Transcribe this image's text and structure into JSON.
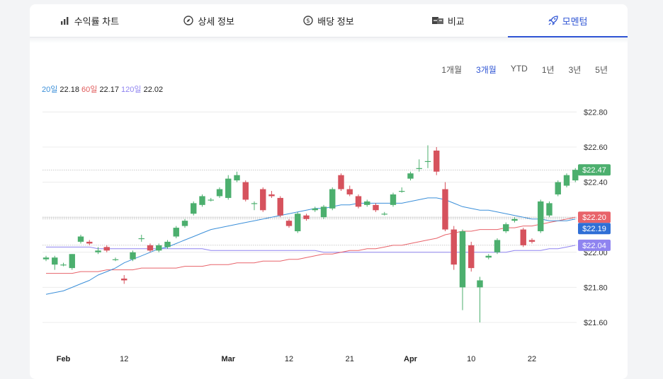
{
  "tabs": [
    {
      "label": "수익률 차트",
      "icon": "bar-chart-icon",
      "active": false
    },
    {
      "label": "상세 정보",
      "icon": "compass-icon",
      "active": false
    },
    {
      "label": "배당 정보",
      "icon": "dollar-icon",
      "active": false
    },
    {
      "label": "비교",
      "icon": "compare-icon",
      "active": false
    },
    {
      "label": "모멘텀",
      "icon": "rocket-icon",
      "active": true
    }
  ],
  "ranges": [
    "1개월",
    "3개월",
    "YTD",
    "1년",
    "3년",
    "5년"
  ],
  "active_range": "3개월",
  "ma_legend": {
    "ma20_label": "20일",
    "ma20_value": "22.18",
    "ma60_label": "60일",
    "ma60_value": "22.17",
    "ma120_label": "120일",
    "ma120_value": "22.02"
  },
  "colors": {
    "up": "#4caf6e",
    "down": "#d6525d",
    "ma20": "#3b8fd9",
    "ma60": "#e8636a",
    "ma120": "#8f84f0",
    "accent": "#2f55d4"
  },
  "chart_data": {
    "type": "candlestick",
    "ylim": [
      21.55,
      22.88
    ],
    "y_ticks": [
      "$22.80",
      "$22.60",
      "$22.40",
      "$22.20",
      "$22.00",
      "$21.80",
      "$21.60"
    ],
    "y_tick_values": [
      22.8,
      22.6,
      22.4,
      22.2,
      22.0,
      21.8,
      21.6
    ],
    "x_tick_labels": [
      {
        "i": 2,
        "label": "Feb",
        "bold": true
      },
      {
        "i": 9,
        "label": "12",
        "bold": false
      },
      {
        "i": 21,
        "label": "Mar",
        "bold": true
      },
      {
        "i": 28,
        "label": "12",
        "bold": false
      },
      {
        "i": 35,
        "label": "21",
        "bold": false
      },
      {
        "i": 42,
        "label": "Apr",
        "bold": true
      },
      {
        "i": 49,
        "label": "10",
        "bold": false
      },
      {
        "i": 56,
        "label": "22",
        "bold": false
      }
    ],
    "candles": [
      [
        21.96,
        21.97,
        21.95,
        21.98
      ],
      [
        21.93,
        21.97,
        21.9,
        21.98
      ],
      [
        21.93,
        21.93,
        21.92,
        21.94
      ],
      [
        21.91,
        21.99,
        21.9,
        21.99
      ],
      [
        22.06,
        22.09,
        22.05,
        22.1
      ],
      [
        22.06,
        22.05,
        22.04,
        22.07
      ],
      [
        22.0,
        22.01,
        21.99,
        22.03
      ],
      [
        22.03,
        22.01,
        22.0,
        22.04
      ],
      [
        21.96,
        21.96,
        21.95,
        21.97
      ],
      [
        21.85,
        21.84,
        21.82,
        21.87
      ],
      [
        21.96,
        22.0,
        21.95,
        22.01
      ],
      [
        22.08,
        22.08,
        22.06,
        22.1
      ],
      [
        22.04,
        22.01,
        22.0,
        22.05
      ],
      [
        22.01,
        22.04,
        22.0,
        22.05
      ],
      [
        22.03,
        22.06,
        22.02,
        22.07
      ],
      [
        22.09,
        22.14,
        22.08,
        22.15
      ],
      [
        22.15,
        22.18,
        22.14,
        22.19
      ],
      [
        22.22,
        22.28,
        22.21,
        22.29
      ],
      [
        22.27,
        22.32,
        22.26,
        22.33
      ],
      [
        22.3,
        22.3,
        22.29,
        22.31
      ],
      [
        22.32,
        22.36,
        22.31,
        22.37
      ],
      [
        22.31,
        22.42,
        22.3,
        22.44
      ],
      [
        22.41,
        22.44,
        22.4,
        22.46
      ],
      [
        22.4,
        22.3,
        22.29,
        22.41
      ],
      [
        22.28,
        22.28,
        22.24,
        22.29
      ],
      [
        22.36,
        22.24,
        22.23,
        22.37
      ],
      [
        22.33,
        22.32,
        22.31,
        22.35
      ],
      [
        22.31,
        22.21,
        22.2,
        22.32
      ],
      [
        22.18,
        22.15,
        22.14,
        22.19
      ],
      [
        22.12,
        22.22,
        22.11,
        22.23
      ],
      [
        22.21,
        22.19,
        22.18,
        22.22
      ],
      [
        22.24,
        22.25,
        22.23,
        22.26
      ],
      [
        22.2,
        22.26,
        22.19,
        22.27
      ],
      [
        22.25,
        22.36,
        22.24,
        22.37
      ],
      [
        22.44,
        22.36,
        22.35,
        22.45
      ],
      [
        22.36,
        22.33,
        22.32,
        22.38
      ],
      [
        22.32,
        22.26,
        22.25,
        22.33
      ],
      [
        22.27,
        22.29,
        22.26,
        22.3
      ],
      [
        22.27,
        22.24,
        22.23,
        22.28
      ],
      [
        22.22,
        22.22,
        22.21,
        22.23
      ],
      [
        22.27,
        22.33,
        22.26,
        22.34
      ],
      [
        22.35,
        22.35,
        22.34,
        22.37
      ],
      [
        22.42,
        22.45,
        22.41,
        22.46
      ],
      [
        22.48,
        22.48,
        22.46,
        22.53
      ],
      [
        22.52,
        22.52,
        22.48,
        22.61
      ],
      [
        22.58,
        22.46,
        22.44,
        22.6
      ],
      [
        22.36,
        22.13,
        22.12,
        22.4
      ],
      [
        22.13,
        21.93,
        21.9,
        22.15
      ],
      [
        21.8,
        22.12,
        21.67,
        22.13
      ],
      [
        22.04,
        21.91,
        21.89,
        22.06
      ],
      [
        21.8,
        21.84,
        21.6,
        21.86
      ],
      [
        21.97,
        21.98,
        21.96,
        21.99
      ],
      [
        22.0,
        22.07,
        21.99,
        22.08
      ],
      [
        22.12,
        22.16,
        22.11,
        22.17
      ],
      [
        22.18,
        22.19,
        22.17,
        22.2
      ],
      [
        22.13,
        22.04,
        22.03,
        22.14
      ],
      [
        22.07,
        22.06,
        22.05,
        22.08
      ],
      [
        22.12,
        22.29,
        22.11,
        22.3
      ],
      [
        22.21,
        22.28,
        22.2,
        22.29
      ],
      [
        22.33,
        22.4,
        22.32,
        22.41
      ],
      [
        22.38,
        22.44,
        22.37,
        22.45
      ],
      [
        22.41,
        22.47,
        22.4,
        22.48
      ]
    ],
    "ma20": [
      21.76,
      21.77,
      21.78,
      21.8,
      21.82,
      21.84,
      21.87,
      21.89,
      21.91,
      21.94,
      21.96,
      21.98,
      22.0,
      22.02,
      22.03,
      22.05,
      22.07,
      22.09,
      22.11,
      22.13,
      22.14,
      22.15,
      22.16,
      22.17,
      22.18,
      22.19,
      22.2,
      22.21,
      22.22,
      22.23,
      22.24,
      22.25,
      22.25,
      22.26,
      22.27,
      22.27,
      22.28,
      22.28,
      22.28,
      22.28,
      22.28,
      22.28,
      22.29,
      22.3,
      22.31,
      22.31,
      22.3,
      22.28,
      22.26,
      22.25,
      22.24,
      22.24,
      22.23,
      22.22,
      22.21,
      22.2,
      22.19,
      22.19,
      22.18,
      22.18,
      22.18,
      22.19
    ],
    "ma60": [
      21.88,
      21.88,
      21.88,
      21.88,
      21.89,
      21.89,
      21.89,
      21.9,
      21.9,
      21.9,
      21.9,
      21.91,
      21.91,
      21.91,
      21.91,
      21.91,
      21.92,
      21.92,
      21.92,
      21.93,
      21.93,
      21.93,
      21.94,
      21.94,
      21.94,
      21.95,
      21.95,
      21.95,
      21.96,
      21.96,
      21.97,
      21.98,
      21.99,
      21.99,
      22.0,
      22.01,
      22.01,
      22.02,
      22.02,
      22.03,
      22.04,
      22.04,
      22.05,
      22.06,
      22.07,
      22.08,
      22.1,
      22.11,
      22.12,
      22.12,
      22.13,
      22.13,
      22.13,
      22.14,
      22.14,
      22.15,
      22.15,
      22.16,
      22.17,
      22.18,
      22.19,
      22.2
    ],
    "ma120": [
      22.03,
      22.03,
      22.03,
      22.03,
      22.03,
      22.03,
      22.02,
      22.02,
      22.02,
      22.02,
      22.02,
      22.02,
      22.02,
      22.02,
      22.02,
      22.02,
      22.02,
      22.02,
      22.02,
      22.01,
      22.01,
      22.01,
      22.01,
      22.01,
      22.01,
      22.01,
      22.01,
      22.01,
      22.01,
      22.01,
      22.01,
      22.01,
      22.0,
      22.0,
      22.0,
      22.0,
      22.0,
      22.0,
      22.0,
      22.0,
      22.0,
      22.0,
      22.0,
      22.0,
      22.0,
      22.0,
      22.0,
      22.0,
      22.0,
      22.0,
      22.0,
      22.0,
      22.0,
      22.0,
      22.01,
      22.01,
      22.01,
      22.01,
      22.02,
      22.02,
      22.03,
      22.04
    ],
    "last_labels": [
      {
        "value": 22.47,
        "text": "$22.47",
        "color": "#4caf6e",
        "guide": 22.47
      },
      {
        "value": 22.2,
        "text": "$22.20",
        "color": "#e8636a",
        "guide": 22.2
      },
      {
        "value": 22.19,
        "text": "$22.19",
        "color": "#2f6fd6",
        "guide": 22.19
      },
      {
        "value": 22.04,
        "text": "$22.04",
        "color": "#8f84f0",
        "guide": 22.04
      }
    ]
  }
}
